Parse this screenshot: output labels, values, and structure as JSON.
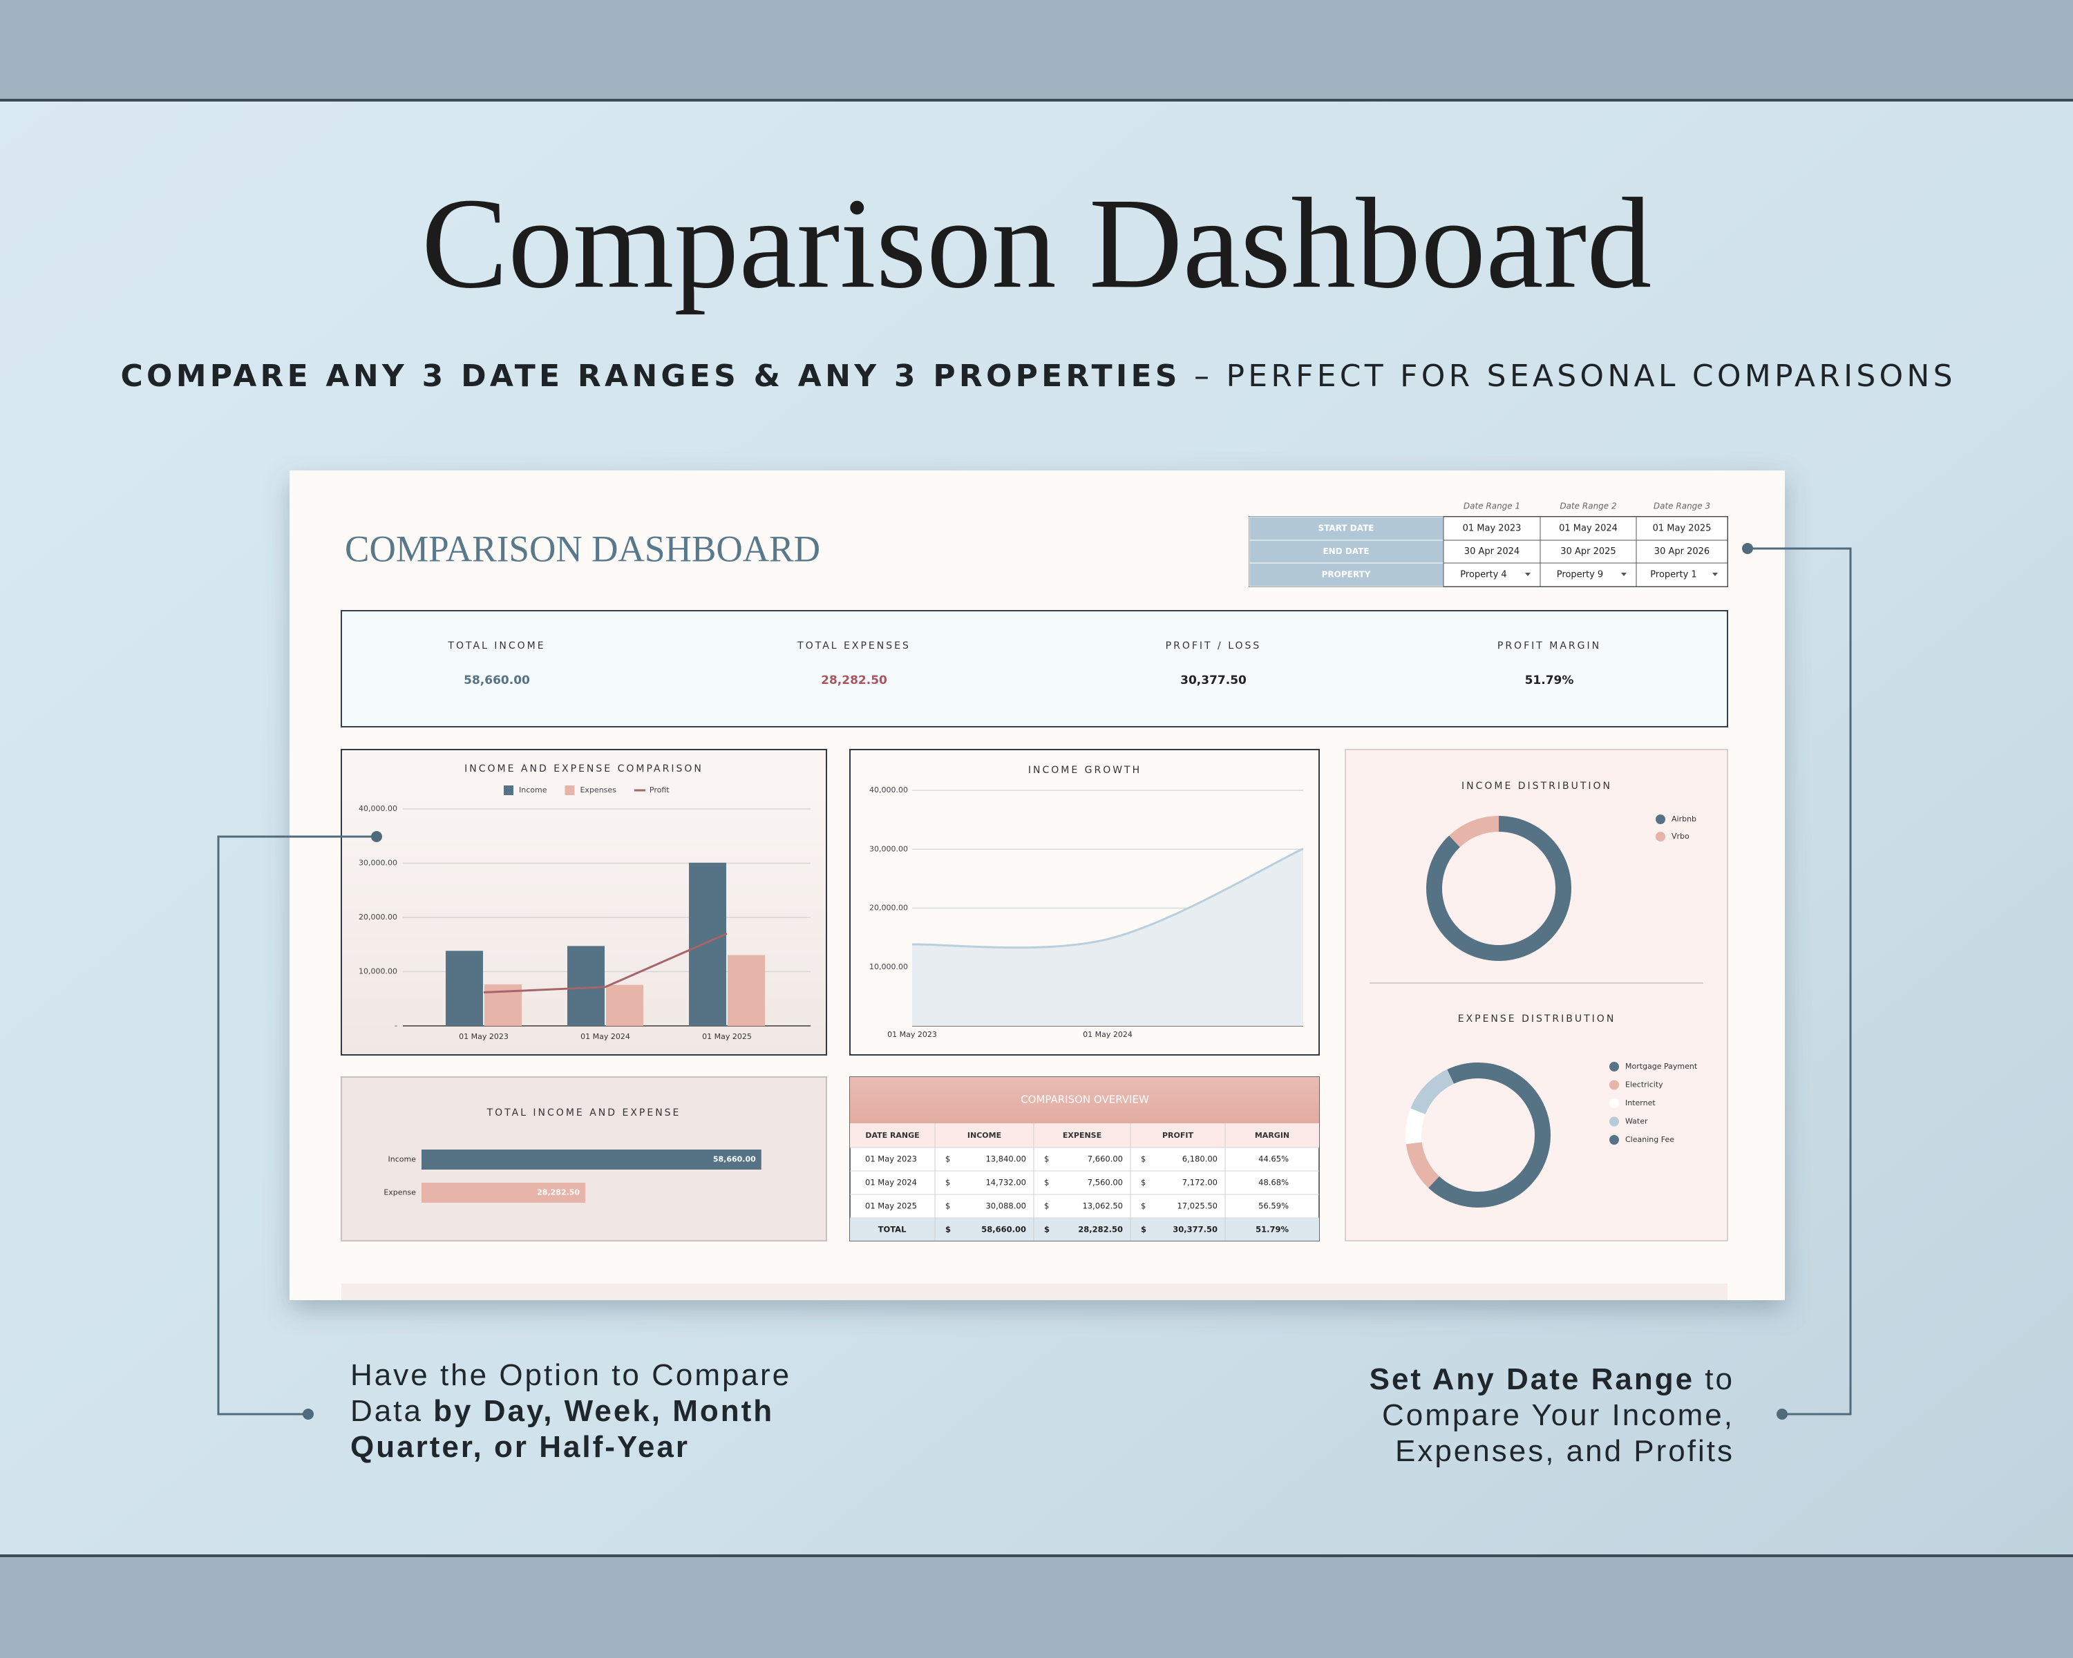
{
  "header": {
    "title": "Comparison Dashboard",
    "subtitle": [
      {
        "text": "COMPARE ANY 3 DATE RANGES & ANY 3 PROPERTIES",
        "bold": true
      },
      {
        "text": " – PERFECT FOR SEASONAL COMPARISONS",
        "bold": false
      }
    ]
  },
  "dashboard": {
    "title": "COMPARISON DASHBOARD",
    "date_table": {
      "columns": [
        "Date Range 1",
        "Date Range 2",
        "Date Range 3"
      ],
      "rows": [
        {
          "label": "START DATE",
          "cells": [
            "01 May 2023",
            "01 May 2024",
            "01 May 2025"
          ]
        },
        {
          "label": "END DATE",
          "cells": [
            "30 Apr 2024",
            "30 Apr 2025",
            "30 Apr 2026"
          ]
        },
        {
          "label": "PROPERTY",
          "cells": [
            "Property 4",
            "Property 9",
            "Property 1"
          ],
          "dropdown": true
        }
      ]
    },
    "kpis": [
      {
        "label": "TOTAL INCOME",
        "value": "58,660.00",
        "color": "#557384"
      },
      {
        "label": "TOTAL EXPENSES",
        "value": "28,282.50",
        "color": "#a8565e"
      },
      {
        "label": "PROFIT / LOSS",
        "value": "30,377.50",
        "color": "#222222"
      },
      {
        "label": "PROFIT MARGIN",
        "value": "51.79%",
        "color": "#222222"
      }
    ],
    "overview": {
      "title": "COMPARISON OVERVIEW",
      "currency": "$",
      "columns": [
        "DATE RANGE",
        "INCOME",
        "EXPENSE",
        "PROFIT",
        "MARGIN"
      ],
      "rows": [
        [
          "01 May 2023",
          "13,840.00",
          "7,660.00",
          "6,180.00",
          "44.65%"
        ],
        [
          "01 May 2024",
          "14,732.00",
          "7,560.00",
          "7,172.00",
          "48.68%"
        ],
        [
          "01 May 2025",
          "30,088.00",
          "13,062.50",
          "17,025.50",
          "56.59%"
        ]
      ],
      "total_row": [
        "TOTAL",
        "58,660.00",
        "28,282.50",
        "30,377.50",
        "51.79%"
      ]
    }
  },
  "chart_data": [
    {
      "type": "bar",
      "title": "INCOME AND EXPENSE COMPARISON",
      "categories": [
        "01 May 2023",
        "01 May 2024",
        "01 May 2025"
      ],
      "series": [
        {
          "name": "Income",
          "color": "#557384",
          "values": [
            13840,
            14732,
            30088
          ]
        },
        {
          "name": "Expenses",
          "color": "#e6b4a9",
          "values": [
            7660,
            7560,
            13062.5
          ]
        },
        {
          "name": "Profit",
          "color": "#a8646b",
          "values": [
            6180,
            7172,
            17025.5
          ],
          "type": "line"
        }
      ],
      "ylim": [
        0,
        40000
      ],
      "yticks": [
        {
          "value": 0,
          "label": "-"
        },
        {
          "value": 10000,
          "label": "10,000.00"
        },
        {
          "value": 20000,
          "label": "20,000.00"
        },
        {
          "value": 30000,
          "label": "30,000.00"
        },
        {
          "value": 40000,
          "label": "40,000.00"
        }
      ],
      "grid": true
    },
    {
      "type": "area",
      "title": "INCOME GROWTH",
      "categories": [
        "01 May 2023",
        "01 May 2024",
        null
      ],
      "values": [
        13840,
        14732,
        30088
      ],
      "color": "#b9cfdc",
      "ylim": [
        0,
        40000
      ],
      "yticks": [
        {
          "value": 10000,
          "label": "10,000.00"
        },
        {
          "value": 20000,
          "label": "20,000.00"
        },
        {
          "value": 30000,
          "label": "30,000.00"
        },
        {
          "value": 40000,
          "label": "40,000.00"
        }
      ],
      "grid": true
    },
    {
      "type": "pie",
      "title": "INCOME DISTRIBUTION",
      "categories": [
        "Airbnb",
        "Vrbo"
      ],
      "values": [
        88,
        12
      ],
      "colors": [
        "#557384",
        "#e6b4a9"
      ]
    },
    {
      "type": "pie",
      "title": "EXPENSE DISTRIBUTION",
      "categories": [
        "Mortgage Payment",
        "Electricity",
        "Internet",
        "Water",
        "Cleaning Fee"
      ],
      "values": [
        62,
        11,
        8,
        12,
        7
      ],
      "colors": [
        "#557384",
        "#e6b4a9",
        "#ffffff",
        "#b7cbd8",
        "#557384"
      ]
    },
    {
      "type": "hbar",
      "title": "TOTAL INCOME AND EXPENSE",
      "categories": [
        "Income",
        "Expense"
      ],
      "values": [
        58660,
        28282.5
      ],
      "value_labels": [
        "58,660.00",
        "28,282.50"
      ],
      "colors": [
        "#557384",
        "#e6b4a9"
      ],
      "xlim": [
        0,
        60000
      ]
    }
  ],
  "callouts": [
    {
      "lines": [
        [
          {
            "text": "Have the Option to Compare",
            "bold": false
          }
        ],
        [
          {
            "text": "Data ",
            "bold": false
          },
          {
            "text": "by Day, Week, Month",
            "bold": true
          }
        ],
        [
          {
            "text": "Quarter, or Half-Year",
            "bold": true
          }
        ]
      ]
    },
    {
      "lines": [
        [
          {
            "text": "Set Any Date Range",
            "bold": true
          },
          {
            "text": " to",
            "bold": false
          }
        ],
        [
          {
            "text": "Compare Your Income,",
            "bold": false
          }
        ],
        [
          {
            "text": "Expenses, and Profits",
            "bold": false
          }
        ]
      ]
    }
  ]
}
